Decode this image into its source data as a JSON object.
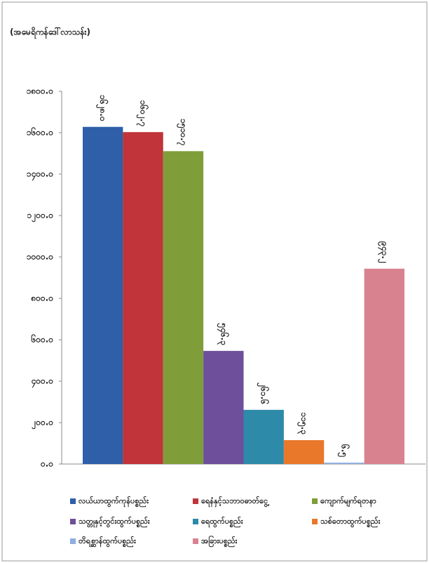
{
  "chart_data": {
    "type": "bar",
    "ylabel": "(အမေရိကန်ဒေါ်လာသန်း)",
    "categories": [
      null
    ],
    "ylim": [
      0,
      1800
    ],
    "yticks": [
      {
        "value": 0,
        "label": "၀.၀"
      },
      {
        "value": 200,
        "label": "၂၀၀.၀"
      },
      {
        "value": 400,
        "label": "၄၀၀.၀"
      },
      {
        "value": 600,
        "label": "၆၀၀.၀"
      },
      {
        "value": 800,
        "label": "၈၀၀.၀"
      },
      {
        "value": 1000,
        "label": "၁၀၀၀.၀"
      },
      {
        "value": 1200,
        "label": "၁၂၀၀.၀"
      },
      {
        "value": 1400,
        "label": "၁၄၀၀.၀"
      },
      {
        "value": 1600,
        "label": "၁၆၀၀.၀"
      },
      {
        "value": 1800,
        "label": "၁၈၀၀.၀"
      }
    ],
    "series": [
      {
        "name": "လယ်ယာထွက်ကုန်ပစ္စည်း",
        "color": "#2e5fa8",
        "values": [
          1628.0
        ],
        "value_labels": [
          "၁၆၂၈.၀"
        ]
      },
      {
        "name": "ရေနံနှင့်သဘာဝဓာတ်ငွေ့",
        "color": "#c0343a",
        "values": [
          1602.7
        ],
        "value_labels": [
          "၁၆၀၂.၇"
        ]
      },
      {
        "name": "ကျောက်မျက်ရတနာ",
        "color": "#7f9e3a",
        "values": [
          1510.7
        ],
        "value_labels": [
          "၁၅၁၀.၇"
        ]
      },
      {
        "name": "သတ္တုနှင့်တွင်းထွက်ပစ္စည်း",
        "color": "#6e4f9b",
        "values": [
          546.3
        ],
        "value_labels": [
          "၅၄၆.၃"
        ]
      },
      {
        "name": "ရေထွက်ပစ္စည်း",
        "color": "#2d8aa8",
        "values": [
          261.6
        ],
        "value_labels": [
          "၂၆၁.၆"
        ]
      },
      {
        "name": "သစ်တောထွက်ပစ္စည်း",
        "color": "#e9782b",
        "values": [
          115.3
        ],
        "value_labels": [
          "၁၁၅.၃"
        ]
      },
      {
        "name": "တိရစ္ဆာန်ထွက်ပစ္စည်း",
        "color": "#8eaee0",
        "values": [
          6.5
        ],
        "value_labels": [
          "၆.၅"
        ]
      },
      {
        "name": "အခြားပစ္စည်း",
        "color": "#d9828f",
        "values": [
          943.2
        ],
        "value_labels": [
          "၉၄၃.၂"
        ]
      }
    ],
    "legend": "bottom"
  }
}
